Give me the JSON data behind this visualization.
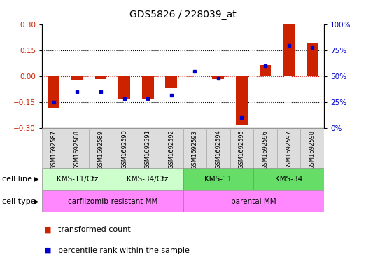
{
  "title": "GDS5826 / 228039_at",
  "samples": [
    "GSM1692587",
    "GSM1692588",
    "GSM1692589",
    "GSM1692590",
    "GSM1692591",
    "GSM1692592",
    "GSM1692593",
    "GSM1692594",
    "GSM1692595",
    "GSM1692596",
    "GSM1692597",
    "GSM1692598"
  ],
  "transformed_count": [
    -0.185,
    -0.02,
    -0.018,
    -0.135,
    -0.13,
    -0.07,
    0.005,
    -0.018,
    -0.28,
    0.065,
    0.3,
    0.19
  ],
  "percentile_rank": [
    25,
    35,
    35,
    28,
    28,
    32,
    55,
    48,
    10,
    60,
    80,
    78
  ],
  "cell_line_groups": [
    {
      "label": "KMS-11/Cfz",
      "start": 0,
      "end": 2,
      "color": "#ccffcc"
    },
    {
      "label": "KMS-34/Cfz",
      "start": 3,
      "end": 5,
      "color": "#ccffcc"
    },
    {
      "label": "KMS-11",
      "start": 6,
      "end": 8,
      "color": "#66dd66"
    },
    {
      "label": "KMS-34",
      "start": 9,
      "end": 11,
      "color": "#66dd66"
    }
  ],
  "cell_type_groups": [
    {
      "label": "carfilzomib-resistant MM",
      "start": 0,
      "end": 5,
      "color": "#ff88ff"
    },
    {
      "label": "parental MM",
      "start": 6,
      "end": 11,
      "color": "#ff88ff"
    }
  ],
  "bar_color": "#cc2200",
  "dot_color": "#0000cc",
  "left_ylim": [
    -0.3,
    0.3
  ],
  "right_ylim": [
    0,
    100
  ],
  "left_yticks": [
    -0.3,
    -0.15,
    0,
    0.15,
    0.3
  ],
  "right_yticks": [
    0,
    25,
    50,
    75,
    100
  ],
  "right_yticklabels": [
    "0%",
    "25%",
    "50%",
    "75%",
    "100%"
  ],
  "hlines": [
    -0.15,
    0.15
  ],
  "zero_line_color": "#dd0000",
  "background_color": "#ffffff",
  "title_fontsize": 10,
  "tick_fontsize": 7.5,
  "legend_fontsize": 8,
  "sample_label_fontsize": 6,
  "annotation_fontsize": 8,
  "cell_label_fontsize": 7.5
}
